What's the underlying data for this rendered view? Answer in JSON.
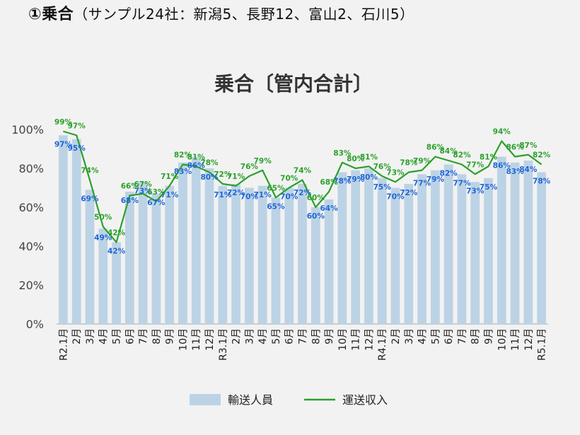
{
  "heading": {
    "main": "①乗合",
    "sub": "（サンプル24社：新潟5、長野12、富山2、石川5）"
  },
  "chart_data": {
    "type": "bar",
    "title": "乗合〔管内合計〕",
    "ylim": [
      0,
      100
    ],
    "yticks": [
      "0%",
      "20%",
      "40%",
      "60%",
      "80%",
      "100%"
    ],
    "categories": [
      "R2.1月",
      "2月",
      "3月",
      "4月",
      "5月",
      "6月",
      "7月",
      "8月",
      "9月",
      "10月",
      "11月",
      "12月",
      "R3.1月",
      "2月",
      "3月",
      "4月",
      "5月",
      "6月",
      "7月",
      "8月",
      "9月",
      "10月",
      "11月",
      "12月",
      "R4.1月",
      "2月",
      "3月",
      "4月",
      "5月",
      "6月",
      "7月",
      "8月",
      "9月",
      "10月",
      "11月",
      "12月",
      "R5.1月"
    ],
    "series": [
      {
        "name": "輸送人員",
        "type": "bar",
        "color": "#bcd3e6",
        "label_color": "#1f66d6",
        "values": [
          97,
          95,
          69,
          49,
          42,
          68,
          73,
          67,
          71,
          83,
          86,
          80,
          71,
          72,
          70,
          71,
          65,
          70,
          72,
          60,
          64,
          78,
          79,
          80,
          75,
          70,
          72,
          77,
          79,
          82,
          77,
          73,
          75,
          86,
          83,
          84,
          78
        ]
      },
      {
        "name": "運送収入",
        "type": "line",
        "color": "#2ca02c",
        "label_color": "#2ca02c",
        "values": [
          99,
          97,
          74,
          50,
          42,
          66,
          67,
          63,
          71,
          82,
          81,
          78,
          72,
          71,
          76,
          79,
          65,
          70,
          74,
          60,
          68,
          83,
          80,
          81,
          76,
          73,
          78,
          79,
          86,
          84,
          82,
          77,
          81,
          94,
          86,
          87,
          82
        ]
      }
    ],
    "legend_position": "bottom-center",
    "grid": false
  }
}
